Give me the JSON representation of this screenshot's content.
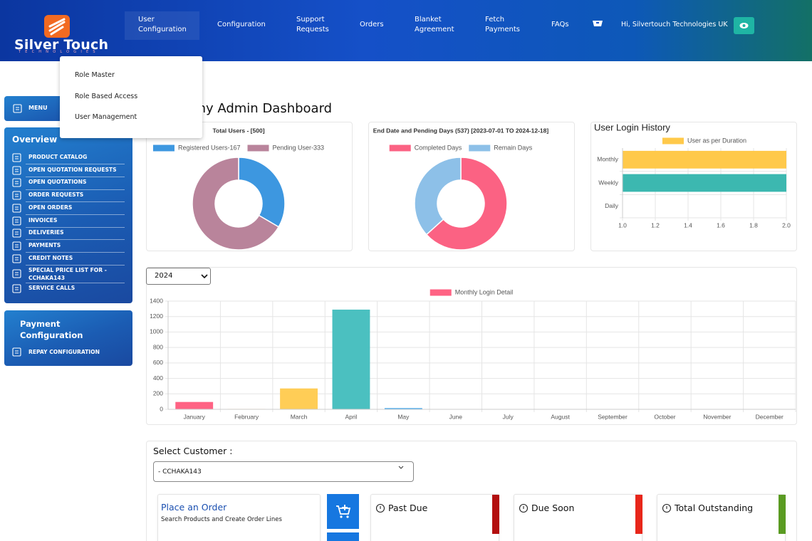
{
  "header": {
    "logo": "Silver Touch",
    "logo_sub": "TECHNOLOGIES",
    "nav": [
      "User Configuration",
      "Configuration",
      "Support Requests",
      "Orders",
      "Blanket Agreement",
      "Fetch Payments",
      "FAQs"
    ],
    "greeting": "Hi, Silvertouch Technologies UK"
  },
  "dropdown": [
    "Role Master",
    "Role Based Access",
    "User Management"
  ],
  "sidebar": {
    "menu": "MENU",
    "overview_title": "Overview",
    "overview_items": [
      "PRODUCT CATALOG",
      "OPEN QUOTATION REQUESTS",
      "OPEN QUOTATIONS",
      "ORDER REQUESTS",
      "OPEN ORDERS",
      "INVOICES",
      "DELIVERIES",
      "PAYMENTS",
      "CREDIT NOTES",
      "SPECIAL PRICE LIST FOR - CCHAKA143",
      "SERVICE CALLS"
    ],
    "payment_title": "Payment Configuration",
    "payment_items": [
      "REPAY CONFIGURATION"
    ]
  },
  "page_title": "Company Admin Dashboard",
  "chart_data": [
    {
      "type": "donut",
      "title": "Total Users - [500]",
      "categories": [
        "Registered Users-167",
        "Pending User-333"
      ],
      "values": [
        167,
        333
      ],
      "colors": [
        "#3d97e0",
        "#b9849b"
      ]
    },
    {
      "type": "donut",
      "title": "End Date and Pending Days (537) [2023-07-01 TO 2024-12-18]",
      "categories": [
        "Completed Days",
        "Remain Days"
      ],
      "values": [
        340,
        197
      ],
      "colors": [
        "#fb6283",
        "#8dc0e8"
      ]
    },
    {
      "type": "hbar",
      "title": "User Login History",
      "categories": [
        "Monthly",
        "Weekly",
        "Daily"
      ],
      "series": [
        {
          "name": "User as per Duration",
          "color": "#ffc94a",
          "values": [
            2,
            2,
            null
          ],
          "colors": [
            "#ffc94a",
            "#3cb8b0",
            "#ffc94a"
          ]
        }
      ],
      "xlim": [
        1,
        2
      ],
      "xticks": [
        {
          "value": 1,
          "label": "1.0"
        },
        1.2,
        1.4,
        1.6,
        1.8,
        {
          "value": 2,
          "label": "2.0"
        }
      ],
      "grid": true
    },
    {
      "type": "bar",
      "year": "2024",
      "categories": [
        "January",
        "February",
        "March",
        "April",
        "May",
        "June",
        "July",
        "August",
        "September",
        "October",
        "November",
        "December"
      ],
      "series": [
        {
          "name": "Monthly Login Detail",
          "color": "#ff6384",
          "values": [
            95,
            5,
            270,
            1290,
            15,
            0,
            0,
            0,
            0,
            0,
            0,
            0
          ],
          "colors": [
            "#ff6384",
            "#ff9f40",
            "#ffcd56",
            "#4bc0c0",
            "#36a2eb",
            "#9966ff",
            "#c9cbcf",
            "#ff6384",
            "#ff9f40",
            "#ffcd56",
            "#4bc0c0",
            "#36a2eb"
          ]
        }
      ],
      "ylim": [
        0,
        1400
      ],
      "yticks": [
        0,
        200,
        400,
        600,
        800,
        1000,
        1200,
        1400
      ],
      "grid": true
    }
  ],
  "customer": {
    "label": "Select Customer :",
    "selected": "- CCHAKA143"
  },
  "cards": {
    "place_order_title": "Place an Order",
    "place_order_sub": "Search Products and Create Order Lines",
    "past_due": "Past Due",
    "due_soon": "Due Soon",
    "total_outstanding": "Total Outstanding"
  }
}
